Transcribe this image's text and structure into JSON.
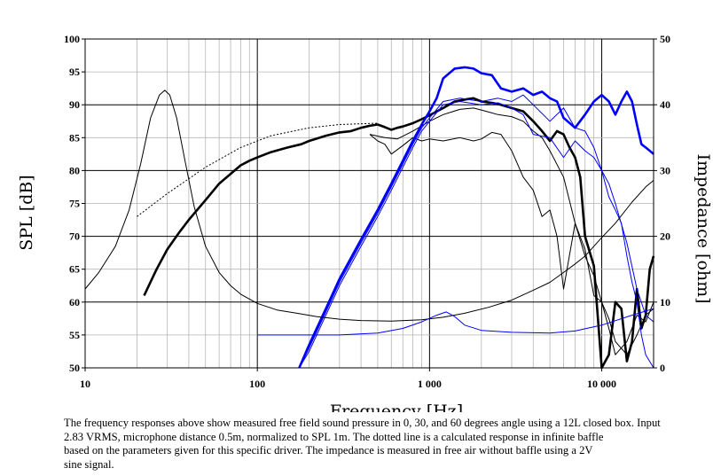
{
  "chart_data": {
    "type": "line",
    "title": "",
    "xlabel": "Frequency [Hz]",
    "ylabel": "SPL [dB]",
    "y2label": "Impedance [ohm]",
    "x_scale": "log",
    "xlim": [
      10,
      20000
    ],
    "ylim": [
      50,
      100
    ],
    "y2lim": [
      0,
      50
    ],
    "grid": true,
    "legend": "none",
    "x_tick_labels": [
      {
        "value": 10,
        "label": "10"
      },
      {
        "value": 100,
        "label": "100"
      },
      {
        "value": 1000,
        "label": "1 000"
      },
      {
        "value": 10000,
        "label": "10 000"
      }
    ],
    "y_ticks": [
      50,
      55,
      60,
      65,
      70,
      75,
      80,
      85,
      90,
      95,
      100
    ],
    "y2_ticks": [
      0,
      10,
      20,
      30,
      40,
      50
    ],
    "series": [
      {
        "axis": "left",
        "color": "#000000",
        "width": 1,
        "dash": "2,2",
        "x": [
          20,
          30,
          50,
          80,
          120,
          200,
          300,
          500
        ],
        "y": [
          73,
          76.5,
          80.5,
          83.5,
          85.3,
          86.5,
          87,
          87.2
        ]
      },
      {
        "axis": "left",
        "color": "#000000",
        "width": 2.6,
        "dash": "",
        "x": [
          22,
          26,
          30,
          35,
          40,
          50,
          60,
          70,
          80,
          90,
          100,
          120,
          150,
          180,
          200,
          250,
          300,
          350,
          400,
          450,
          500,
          550,
          600,
          650,
          700,
          800,
          900,
          1000,
          1200,
          1400,
          1600,
          1800,
          2000,
          2300,
          2600,
          3000,
          3500,
          4000,
          4500,
          5000,
          5500,
          6000,
          6500,
          7000,
          7500,
          8000,
          9000,
          10000,
          11000,
          12000,
          13000,
          14000,
          15000,
          16000,
          17000,
          18000,
          19000,
          20000
        ],
        "y": [
          61,
          65,
          68,
          70.5,
          72.5,
          75.5,
          78,
          79.5,
          80.8,
          81.5,
          82,
          82.8,
          83.5,
          84,
          84.5,
          85.3,
          85.8,
          86,
          86.5,
          86.8,
          87,
          86.6,
          86.2,
          86.5,
          86.7,
          87.2,
          87.8,
          88.4,
          89.5,
          90.5,
          90.8,
          91,
          90.5,
          90.3,
          90,
          89.5,
          89,
          87.5,
          86,
          84.5,
          86,
          85.5,
          83.5,
          82,
          79,
          70,
          65.5,
          49,
          52,
          60,
          59,
          51,
          54,
          62,
          56,
          58,
          65,
          67
        ]
      },
      {
        "axis": "left",
        "color": "#000000",
        "width": 1,
        "dash": "",
        "x": [
          450,
          550,
          650,
          800,
          1000,
          1200,
          1500,
          1800,
          2000,
          2500,
          3000,
          3500,
          4000,
          4500,
          5000,
          6000,
          7000,
          8000,
          9000,
          10000,
          11000,
          12000,
          14000,
          16000,
          18000,
          20000
        ],
        "y": [
          85.5,
          85,
          84.8,
          86,
          87.5,
          88.5,
          89.3,
          89.5,
          89.2,
          88.5,
          88.2,
          87.5,
          86,
          85,
          83,
          79,
          72,
          67,
          64,
          60,
          56,
          52,
          54,
          58,
          57,
          60
        ]
      },
      {
        "axis": "left",
        "color": "#000000",
        "width": 1,
        "dash": "",
        "x": [
          450,
          500,
          550,
          600,
          700,
          800,
          900,
          1000,
          1200,
          1500,
          1800,
          2000,
          2300,
          2600,
          3000,
          3500,
          4000,
          4500,
          5000,
          5500,
          6000,
          7000,
          8000,
          9000,
          10000,
          11000,
          12000,
          14000,
          16000,
          18000,
          20000
        ],
        "y": [
          85.5,
          84.5,
          84,
          82.5,
          83.8,
          85,
          84.5,
          84.8,
          84.5,
          85,
          84.5,
          84.8,
          85.8,
          85.5,
          83,
          79,
          77,
          73,
          74,
          70,
          62,
          72,
          68,
          61,
          60,
          57.5,
          54,
          52,
          55,
          58,
          59
        ]
      },
      {
        "axis": "left",
        "color": "#0000ff",
        "width": 2.6,
        "dash": "",
        "x": [
          175,
          200,
          250,
          300,
          400,
          500,
          600,
          700,
          800,
          900,
          1000,
          1100,
          1200,
          1400,
          1600,
          1800,
          2000,
          2300,
          2600,
          3000,
          3500,
          4000,
          4500,
          5000,
          5500,
          6000,
          7000,
          8000,
          9000,
          10000,
          11000,
          12000,
          13000,
          14000,
          15000,
          16000,
          17000,
          18000,
          19000,
          20000
        ],
        "y": [
          50,
          53.5,
          59,
          63.5,
          69.5,
          74,
          78,
          81.5,
          84.5,
          87,
          89,
          91,
          94,
          95.5,
          95.7,
          95.5,
          94.8,
          94.5,
          92.5,
          92,
          92.5,
          91.5,
          92,
          91,
          90.5,
          88,
          86.5,
          88.5,
          90.5,
          91.5,
          90.5,
          88.5,
          90.5,
          92,
          90.5,
          87,
          84,
          83.5,
          83,
          82.5
        ]
      },
      {
        "axis": "left",
        "color": "#0000ff",
        "width": 1,
        "dash": "",
        "x": [
          175,
          200,
          250,
          300,
          400,
          500,
          600,
          700,
          800,
          900,
          1000,
          1200,
          1500,
          2000,
          2500,
          3000,
          3500,
          4000,
          5000,
          6000,
          7000,
          8000,
          9000,
          10000,
          11000,
          12000,
          14000,
          16000,
          18000,
          20000
        ],
        "y": [
          50,
          53,
          58.5,
          63,
          69,
          73.5,
          77.5,
          81,
          84,
          86.5,
          88,
          90.5,
          91,
          90.5,
          91,
          90.5,
          91.5,
          90,
          87.5,
          89.5,
          86.5,
          86,
          83.5,
          80,
          78,
          75,
          69,
          62,
          58,
          57
        ]
      },
      {
        "axis": "left",
        "color": "#0000ff",
        "width": 1,
        "dash": "",
        "x": [
          175,
          200,
          250,
          300,
          400,
          500,
          600,
          700,
          800,
          900,
          1000,
          1200,
          1500,
          2000,
          2500,
          3000,
          3500,
          4000,
          5000,
          6000,
          7000,
          8000,
          9000,
          10000,
          11000,
          12000,
          13000,
          14000,
          15000,
          16000,
          17000,
          18000,
          20000
        ],
        "y": [
          50,
          52.5,
          58,
          62.5,
          68.5,
          73,
          77,
          80.5,
          83.5,
          86,
          87.5,
          90,
          90.5,
          90,
          90.3,
          89.5,
          88.5,
          85.5,
          85,
          82,
          84.5,
          83,
          82,
          80,
          76,
          74,
          72,
          67,
          63,
          60,
          55,
          52,
          50
        ]
      },
      {
        "axis": "right",
        "color": "#000000",
        "width": 1,
        "dash": "",
        "x": [
          10,
          12,
          15,
          18,
          21,
          24,
          27,
          29,
          31,
          34,
          38,
          43,
          50,
          60,
          70,
          80,
          100,
          130,
          170,
          220,
          300,
          400,
          600,
          900,
          1200,
          1600,
          2200,
          3000,
          4000,
          5000,
          6000,
          7000,
          8000,
          10000,
          12000,
          15000,
          18000,
          20000
        ],
        "y": [
          12,
          14.5,
          18.5,
          24,
          31,
          38,
          41.5,
          42.2,
          41.5,
          38,
          31.5,
          24.5,
          18.5,
          14.5,
          12.5,
          11.2,
          9.8,
          8.8,
          8.3,
          7.8,
          7.4,
          7.2,
          7.1,
          7.3,
          7.7,
          8.3,
          9.2,
          10.3,
          11.8,
          13,
          14.5,
          15.8,
          17,
          19.8,
          22,
          25.2,
          27.5,
          28.5
        ]
      },
      {
        "axis": "right",
        "color": "#0000ff",
        "width": 1,
        "dash": "",
        "x": [
          100,
          150,
          200,
          300,
          500,
          700,
          900,
          1100,
          1250,
          1400,
          1600,
          2000,
          3000,
          5000,
          7000,
          10000,
          15000,
          20000
        ],
        "y": [
          5,
          5,
          5,
          5,
          5.3,
          6,
          7,
          8,
          8.5,
          7.8,
          6.5,
          5.7,
          5.4,
          5.3,
          5.6,
          6.5,
          8,
          9
        ]
      }
    ]
  },
  "caption_lines": [
    "The frequency responses above show measured free field sound pressure in 0, 30, and 60 degrees angle using a 12L closed box. Input",
    "2.83 VRMS, microphone distance 0.5m, normalized to SPL 1m. The dotted line is a calculated response in infinite baffle",
    "based on the parameters given for this specific driver. The impedance is measured in free air without baffle using a 2V",
    "sine signal."
  ]
}
